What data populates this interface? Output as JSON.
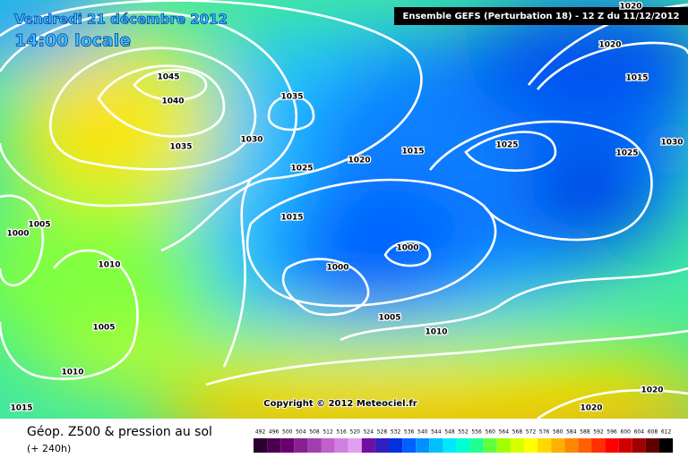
{
  "header": {
    "date": "Vendredi 21 décembre 2012",
    "time": "14:00 locale",
    "model": "Ensemble GEFS (Perturbation 18)  -  12 Z du 11/12/2012"
  },
  "copyright": "Copyright © 2012 Meteociel.fr",
  "legend": {
    "title": "Géop. Z500 & pression au sol",
    "lead": "(+ 240h)",
    "colorbar": {
      "values": [
        492,
        496,
        500,
        504,
        508,
        512,
        516,
        520,
        524,
        528,
        532,
        536,
        540,
        544,
        548,
        552,
        556,
        560,
        564,
        568,
        572,
        576,
        580,
        584,
        588,
        592,
        596,
        600,
        604,
        608,
        612
      ],
      "colors": [
        "#2a0030",
        "#4a0050",
        "#6a0070",
        "#8a2090",
        "#a040b0",
        "#c060c8",
        "#d080e0",
        "#e0a0f0",
        "#7010a0",
        "#3020c0",
        "#0030e0",
        "#0060ff",
        "#0090ff",
        "#00c0ff",
        "#00e8ff",
        "#00ffd0",
        "#20ff90",
        "#60ff40",
        "#a0ff00",
        "#d8ff00",
        "#ffff00",
        "#ffd800",
        "#ffb000",
        "#ff8800",
        "#ff6000",
        "#ff3000",
        "#ff0000",
        "#d00000",
        "#a00000",
        "#600000",
        "#000000"
      ]
    }
  },
  "isobars": [
    "1045",
    "1040",
    "1035",
    "1035",
    "1030",
    "1025",
    "1020",
    "1015",
    "1015",
    "1005",
    "1000",
    "1010",
    "1000",
    "1000",
    "1005",
    "1005",
    "1010",
    "1010",
    "1015",
    "1025",
    "1025",
    "1030",
    "1020",
    "1015",
    "1020",
    "1020",
    "1020"
  ]
}
